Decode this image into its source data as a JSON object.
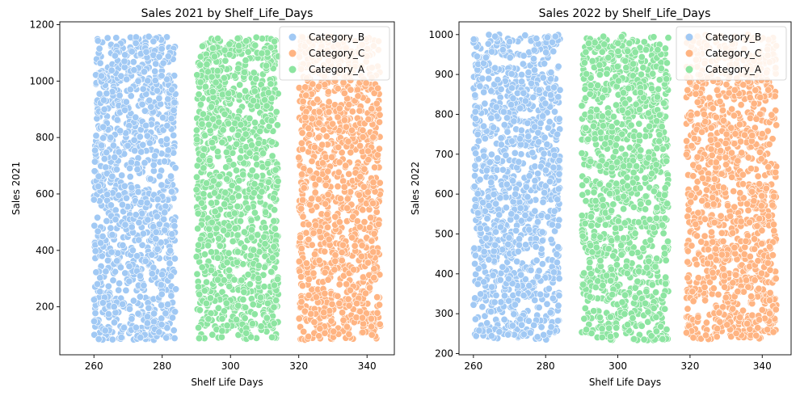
{
  "colors": {
    "Category_A": "#8de5a1",
    "Category_B": "#a1c9f4",
    "Category_C": "#ffb482"
  },
  "chart_data": [
    {
      "type": "scatter",
      "title": "Sales 2021 by Shelf_Life_Days",
      "xlabel": "Shelf Life Days",
      "ylabel": "Sales 2021",
      "xlim": [
        250,
        348
      ],
      "ylim": [
        30,
        1210
      ],
      "xticks": [
        260,
        280,
        300,
        320,
        340
      ],
      "yticks": [
        200,
        400,
        600,
        800,
        1000,
        1200
      ],
      "grid": false,
      "legend": "upper-right",
      "legend_entries": [
        "Category_B",
        "Category_C",
        "Category_A"
      ],
      "series": [
        {
          "name": "Category_B",
          "x_range": [
            260,
            284
          ],
          "y_range": [
            82,
            1158
          ]
        },
        {
          "name": "Category_C",
          "x_range": [
            320,
            344
          ],
          "y_range": [
            82,
            1158
          ]
        },
        {
          "name": "Category_A",
          "x_range": [
            290,
            314
          ],
          "y_range": [
            85,
            1155
          ]
        }
      ]
    },
    {
      "type": "scatter",
      "title": "Sales 2022 by Shelf_Life_Days",
      "xlabel": "Shelf Life Days",
      "ylabel": "Sales 2022",
      "xlim": [
        256,
        348
      ],
      "ylim": [
        197,
        1032
      ],
      "xticks": [
        260,
        280,
        300,
        320,
        340
      ],
      "yticks": [
        200,
        300,
        400,
        500,
        600,
        700,
        800,
        900,
        1000
      ],
      "grid": false,
      "legend": "upper-right",
      "legend_entries": [
        "Category_B",
        "Category_C",
        "Category_A"
      ],
      "series": [
        {
          "name": "Category_B",
          "x_range": [
            260,
            284
          ],
          "y_range": [
            235,
            1000
          ]
        },
        {
          "name": "Category_C",
          "x_range": [
            319,
            344
          ],
          "y_range": [
            235,
            1000
          ]
        },
        {
          "name": "Category_A",
          "x_range": [
            290,
            314
          ],
          "y_range": [
            233,
            1000
          ]
        }
      ]
    }
  ]
}
